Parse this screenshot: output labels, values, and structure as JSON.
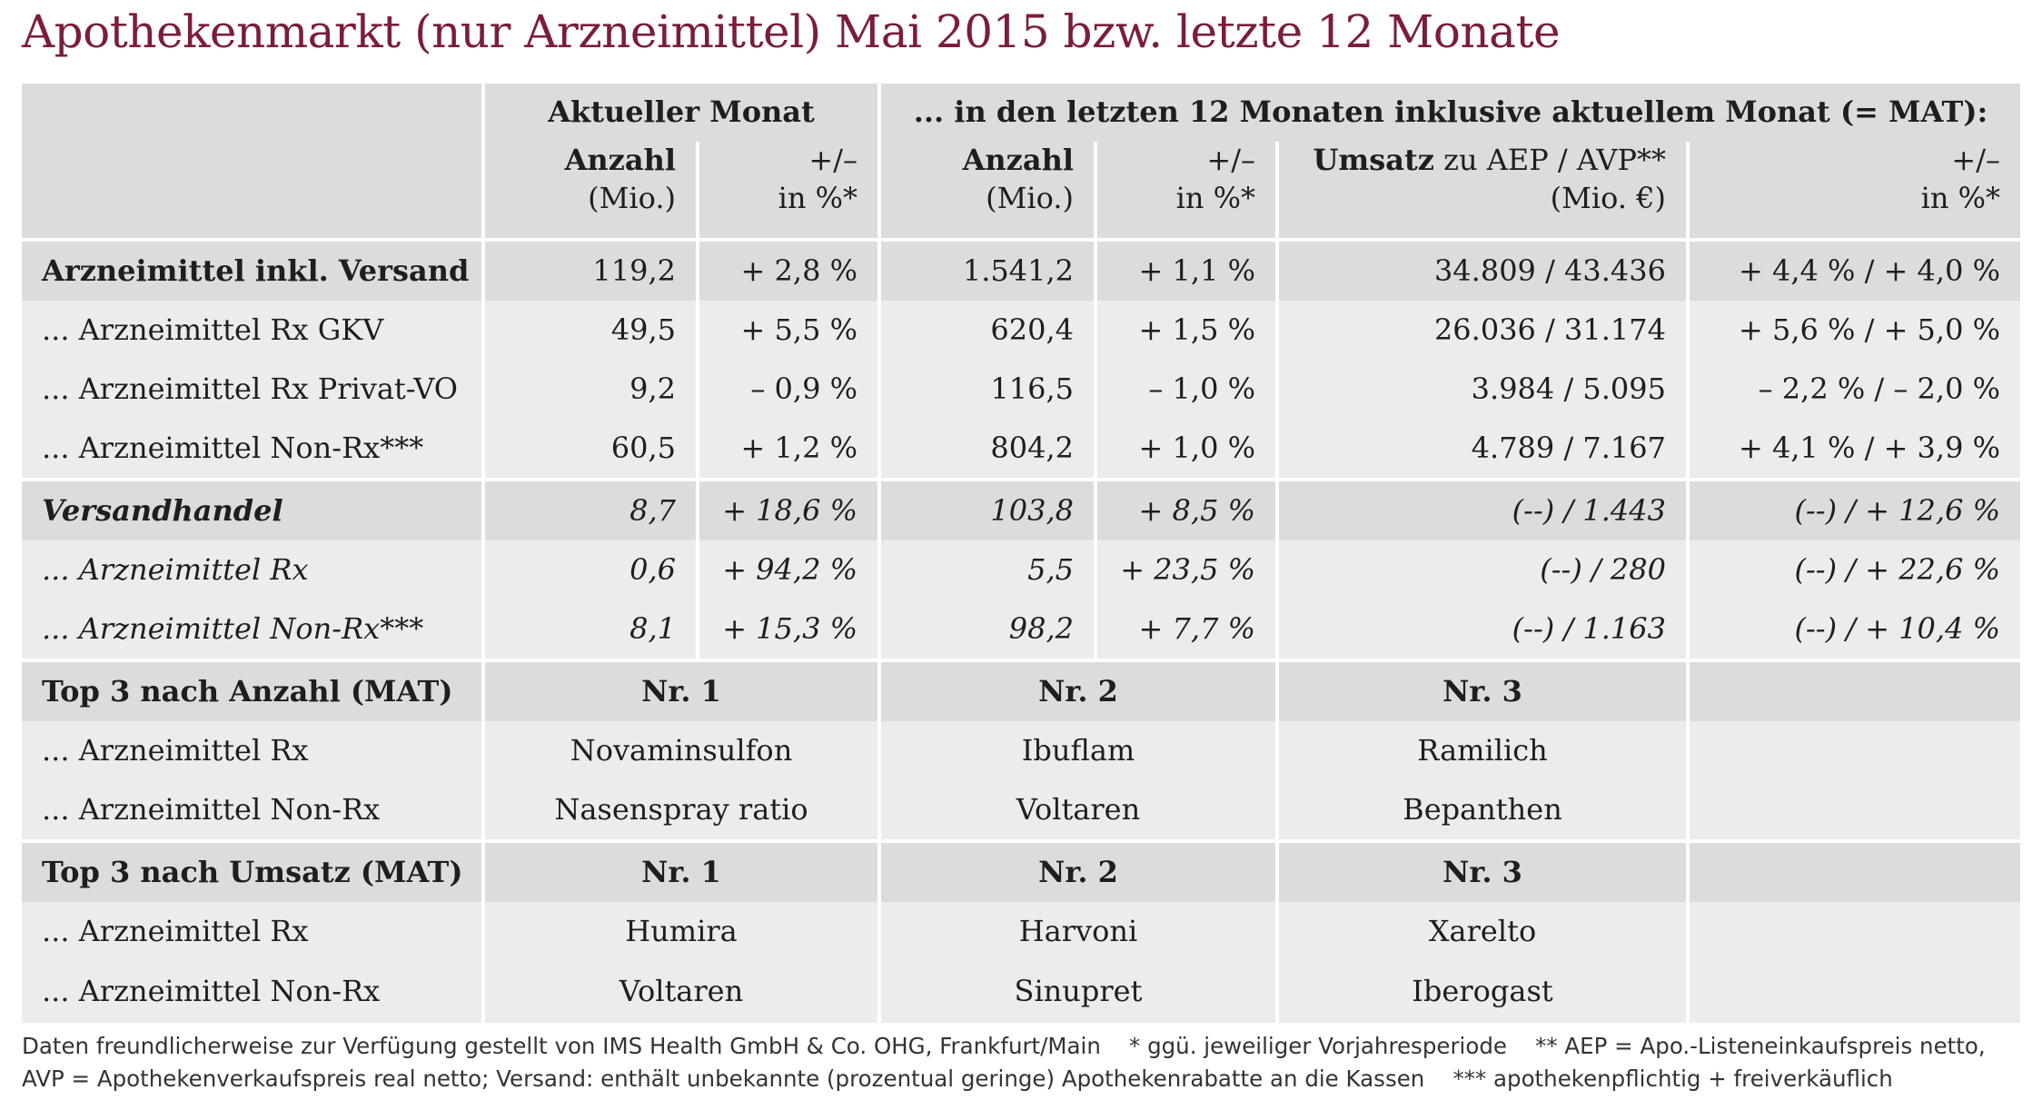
{
  "title": "Apothekenmarkt (nur Arzneimittel) Mai 2015 bzw. letzte 12 Monate",
  "header": {
    "group_current": "Aktueller Monat",
    "group_mat": "... in den letzten 12 Monaten inklusive aktuellem Monat (= MAT):",
    "col_anzahl": "Anzahl",
    "col_anzahl_unit": "(Mio.)",
    "col_change": "+/–",
    "col_change_unit": "in %*",
    "col_anzahl_mat": "Anzahl",
    "col_anzahl_mat_unit": "(Mio.)",
    "col_change_mat": "+/–",
    "col_change_mat_unit": "in %*",
    "col_umsatz_bold": "Umsatz",
    "col_umsatz_rest": " zu AEP / AVP**",
    "col_umsatz_unit": "(Mio. €)",
    "col_change_umsatz": "+/–",
    "col_change_umsatz_unit": "in %*"
  },
  "rows": [
    {
      "label": "Arzneimittel inkl. Versand",
      "anzahl": "119,2",
      "change": "+ 2,8 %",
      "anzahl_mat": "1.541,2",
      "change_mat": "+ 1,1 %",
      "umsatz": "34.809 / 43.436",
      "change_umsatz": "+ 4,4 % / + 4,0 %"
    },
    {
      "label": "... Arzneimittel Rx GKV",
      "anzahl": "49,5",
      "change": "+ 5,5 %",
      "anzahl_mat": "620,4",
      "change_mat": "+ 1,5 %",
      "umsatz": "26.036 / 31.174",
      "change_umsatz": "+ 5,6 % / + 5,0 %"
    },
    {
      "label": "... Arzneimittel Rx Privat-VO",
      "anzahl": "9,2",
      "change": "– 0,9 %",
      "anzahl_mat": "116,5",
      "change_mat": "– 1,0 %",
      "umsatz": "3.984 / 5.095",
      "change_umsatz": "– 2,2 % / – 2,0 %"
    },
    {
      "label": "... Arzneimittel Non-Rx***",
      "anzahl": "60,5",
      "change": "+ 1,2 %",
      "anzahl_mat": "804,2",
      "change_mat": "+ 1,0 %",
      "umsatz": "4.789 / 7.167",
      "change_umsatz": "+ 4,1 % / + 3,9 %"
    },
    {
      "label": "Versandhandel",
      "anzahl": "8,7",
      "change": "+ 18,6 %",
      "anzahl_mat": "103,8",
      "change_mat": "+ 8,5 %",
      "umsatz": "(--) / 1.443",
      "change_umsatz": "(--) / + 12,6 %"
    },
    {
      "label": "... Arzneimittel Rx",
      "anzahl": "0,6",
      "change": "+ 94,2 %",
      "anzahl_mat": "5,5",
      "change_mat": "+ 23,5 %",
      "umsatz": "(--) / 280",
      "change_umsatz": "(--) / + 22,6 %"
    },
    {
      "label": "... Arzneimittel Non-Rx***",
      "anzahl": "8,1",
      "change": "+ 15,3 %",
      "anzahl_mat": "98,2",
      "change_mat": "+ 7,7 %",
      "umsatz": "(--) / 1.163",
      "change_umsatz": "(--) / + 10,4 %"
    }
  ],
  "top_anzahl": {
    "label": "Top 3 nach Anzahl (MAT)",
    "nr1": "Nr. 1",
    "nr2": "Nr. 2",
    "nr3": "Nr. 3",
    "rx_label": "... Arzneimittel Rx",
    "rx": [
      "Novaminsulfon",
      "Ibuflam",
      "Ramilich"
    ],
    "nonrx_label": "... Arzneimittel Non-Rx",
    "nonrx": [
      "Nasenspray ratio",
      "Voltaren",
      "Bepanthen"
    ]
  },
  "top_umsatz": {
    "label": "Top 3 nach Umsatz (MAT)",
    "nr1": "Nr. 1",
    "nr2": "Nr. 2",
    "nr3": "Nr. 3",
    "rx_label": "... Arzneimittel Rx",
    "rx": [
      "Humira",
      "Harvoni",
      "Xarelto"
    ],
    "nonrx_label": "... Arzneimittel Non-Rx",
    "nonrx": [
      "Voltaren",
      "Sinupret",
      "Iberogast"
    ]
  },
  "footer": {
    "line1": "Daten freundlicherweise zur Verfügung gestellt von IMS Health GmbH & Co. OHG, Frankfurt/Main    * ggü. jeweiliger Vorjahresperiode    ** AEP = Apo.-Listeneinkaufspreis netto,",
    "line2": "AVP = Apothekenverkaufspreis real netto; Versand: enthält unbekannte (prozentual geringe) Apothekenrabatte an die Kassen    *** apothekenpflichtig + freiverkäuflich"
  },
  "colors": {
    "title": "#7b1d3a",
    "band_dark": "#dcdcde",
    "band_light": "#ececed"
  }
}
